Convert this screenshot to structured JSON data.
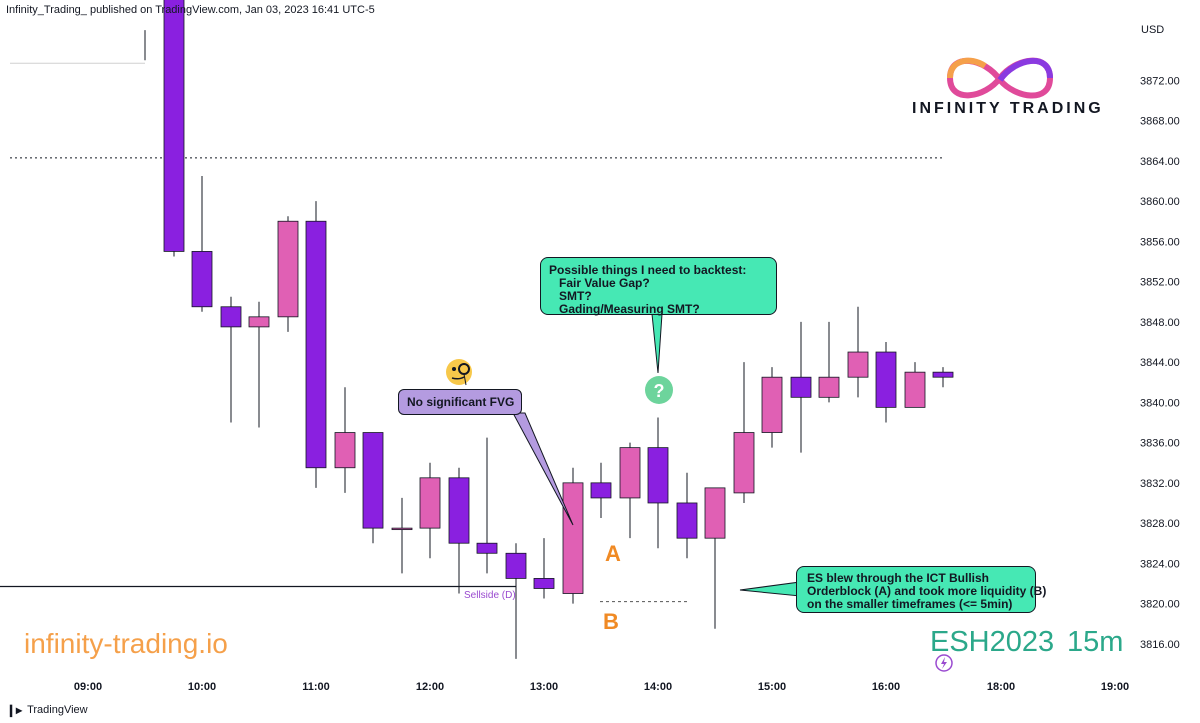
{
  "header": {
    "attribution": "Infinity_Trading_ published on TradingView.com, Jan 03, 2023 16:41 UTC-5"
  },
  "footer": {
    "brand": "TradingView"
  },
  "watermarks": {
    "site": "infinity-trading.io",
    "symbol": "ESH2023",
    "timeframe": "15m",
    "brand": "INFINITY TRADING"
  },
  "annotations": {
    "backtest_note": "Possible things I need to backtest:\n   Fair Value Gap?\n   SMT?\n   Gading/Measuring SMT?",
    "fvg_note": "No significant FVG",
    "es_note": "ES blew through the ICT Bullish\nOrderblock (A) and took more liquidity (B)\non the smaller timeframes (<= 5min)",
    "label_a": "A",
    "label_b": "B",
    "sellside": "Sellside (D)",
    "question_icon": "question-mark-icon",
    "thinking_icon": "monocle-face-emoji-icon",
    "lightning_icon": "lightning-icon"
  },
  "colors": {
    "bull": "#e060b4",
    "bear": "#8a20e0",
    "wick": "#131722",
    "backtest_bubble": "#46e8b4",
    "fvg_bubble": "#b49be0",
    "es_bubble": "#46e8b4",
    "question_badge": "#6dd49c",
    "label_orange": "#f08a24",
    "sellside_text": "#9a4ad0"
  },
  "chart_data": {
    "type": "candlestick",
    "currency_label": "USD",
    "y_ticks": [
      3872,
      3868,
      3864,
      3860,
      3856,
      3852,
      3848,
      3844,
      3840,
      3836,
      3832,
      3828,
      3824,
      3820,
      3816
    ],
    "x_ticks": [
      "09:00",
      "10:00",
      "11:00",
      "12:00",
      "13:00",
      "14:00",
      "15:00",
      "16:00",
      "18:00",
      "19:00"
    ],
    "ylim": [
      3813.2,
      3878.2
    ],
    "candles": [
      {
        "time": "09:45",
        "open": 3876,
        "high": 3877,
        "low": 3874,
        "close": 3875
      },
      {
        "time": "10:00",
        "open": 3882,
        "high": 3882,
        "low": 3854.5,
        "close": 3855
      },
      {
        "time": "10:00",
        "open": 3855,
        "high": 3862.5,
        "low": 3849,
        "close": 3849.5
      },
      {
        "time": "10:15",
        "open": 3849.5,
        "high": 3850.5,
        "low": 3838,
        "close": 3847.5
      },
      {
        "time": "10:30",
        "open": 3847.5,
        "high": 3850,
        "low": 3837.5,
        "close": 3848.5
      },
      {
        "time": "10:45",
        "open": 3848.5,
        "high": 3858.5,
        "low": 3847,
        "close": 3858
      },
      {
        "time": "11:00",
        "open": 3858,
        "high": 3860,
        "low": 3831.5,
        "close": 3833.5
      },
      {
        "time": "11:15",
        "open": 3833.5,
        "high": 3841.5,
        "low": 3831,
        "close": 3837
      },
      {
        "time": "11:30",
        "open": 3837,
        "high": 3837,
        "low": 3826,
        "close": 3827.5
      },
      {
        "time": "11:45",
        "open": 3827.5,
        "high": 3830.5,
        "low": 3823,
        "close": 3827.5
      },
      {
        "time": "12:00",
        "open": 3827.5,
        "high": 3834,
        "low": 3824.5,
        "close": 3832.5
      },
      {
        "time": "12:15",
        "open": 3832.5,
        "high": 3833.5,
        "low": 3821,
        "close": 3826
      },
      {
        "time": "12:30",
        "open": 3826,
        "high": 3836.5,
        "low": 3823,
        "close": 3825
      },
      {
        "time": "12:45",
        "open": 3825,
        "high": 3826,
        "low": 3814.5,
        "close": 3822.5
      },
      {
        "time": "13:00",
        "open": 3822.5,
        "high": 3826.5,
        "low": 3820.5,
        "close": 3821.5
      },
      {
        "time": "13:15",
        "open": 3821,
        "high": 3833.5,
        "low": 3820,
        "close": 3832
      },
      {
        "time": "13:30",
        "open": 3832,
        "high": 3834,
        "low": 3828.5,
        "close": 3830.5
      },
      {
        "time": "13:45",
        "open": 3830.5,
        "high": 3836,
        "low": 3826.5,
        "close": 3835.5
      },
      {
        "time": "14:00",
        "open": 3835.5,
        "high": 3838.5,
        "low": 3825.5,
        "close": 3830
      },
      {
        "time": "14:15",
        "open": 3830,
        "high": 3833,
        "low": 3824.5,
        "close": 3826.5
      },
      {
        "time": "14:30",
        "open": 3826.5,
        "high": 3831.5,
        "low": 3817.5,
        "close": 3831.5
      },
      {
        "time": "14:45",
        "open": 3831,
        "high": 3844,
        "low": 3830,
        "close": 3837
      },
      {
        "time": "15:00",
        "open": 3837,
        "high": 3843.5,
        "low": 3835.5,
        "close": 3842.5
      },
      {
        "time": "15:15",
        "open": 3842.5,
        "high": 3848,
        "low": 3835,
        "close": 3840.5
      },
      {
        "time": "15:30",
        "open": 3840.5,
        "high": 3848,
        "low": 3840,
        "close": 3842.5
      },
      {
        "time": "15:45",
        "open": 3842.5,
        "high": 3849.5,
        "low": 3840.5,
        "close": 3845
      },
      {
        "time": "16:00",
        "open": 3845,
        "high": 3846,
        "low": 3838,
        "close": 3839.5
      },
      {
        "time": "16:15",
        "open": 3839.5,
        "high": 3844,
        "low": 3839.5,
        "close": 3843
      },
      {
        "time": "16:30",
        "open": 3843,
        "high": 3843.5,
        "low": 3841.5,
        "close": 3842.5
      }
    ],
    "levels": [
      {
        "name": "dotted-level",
        "price": 3864.3,
        "style": "dotted"
      },
      {
        "name": "sellside-level",
        "price": 3821.7,
        "style": "solid"
      },
      {
        "name": "b-level",
        "price": 3820.2,
        "style": "dashed"
      },
      {
        "name": "upper-white-level",
        "price": 3873.7,
        "style": "solid"
      }
    ]
  }
}
